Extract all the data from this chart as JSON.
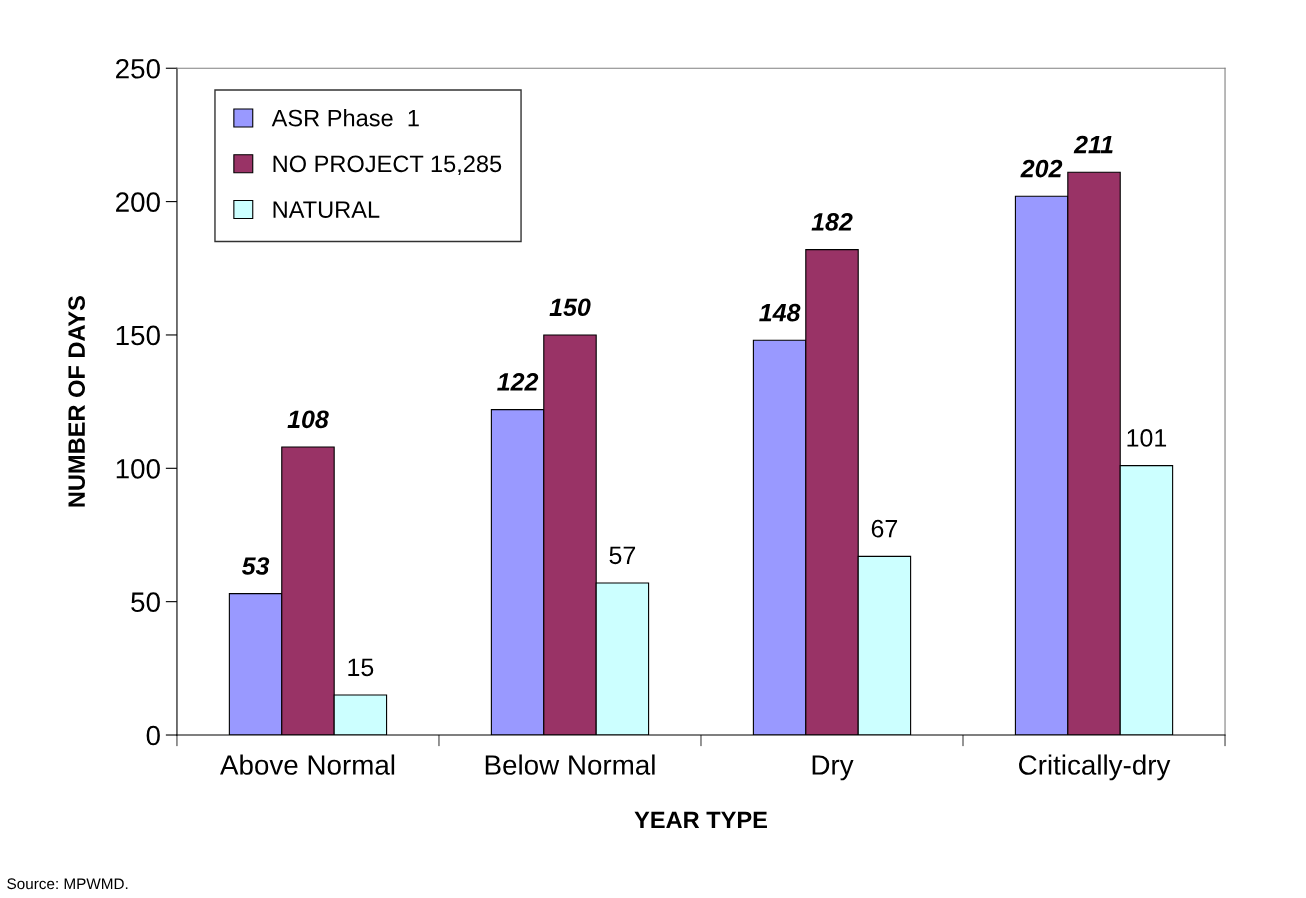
{
  "chart_data": {
    "type": "bar",
    "xlabel": "YEAR TYPE",
    "ylabel": "NUMBER OF DAYS",
    "categories": [
      "Above Normal",
      "Below Normal",
      "Dry",
      "Critically-dry"
    ],
    "series": [
      {
        "name": "ASR Phase  1",
        "color": "#9999ff",
        "values": [
          53,
          122,
          148,
          202
        ]
      },
      {
        "name": "NO PROJECT 15,285",
        "color": "#993366",
        "values": [
          108,
          150,
          182,
          211
        ]
      },
      {
        "name": "NATURAL",
        "color": "#ccffff",
        "values": [
          15,
          57,
          67,
          101
        ]
      }
    ],
    "ylim": [
      0,
      250
    ],
    "yticks": [
      0,
      50,
      100,
      150,
      200,
      250
    ],
    "grid": false,
    "legend": "top left",
    "data_labels": true,
    "annotations": [
      "Source: MPWMD."
    ]
  }
}
